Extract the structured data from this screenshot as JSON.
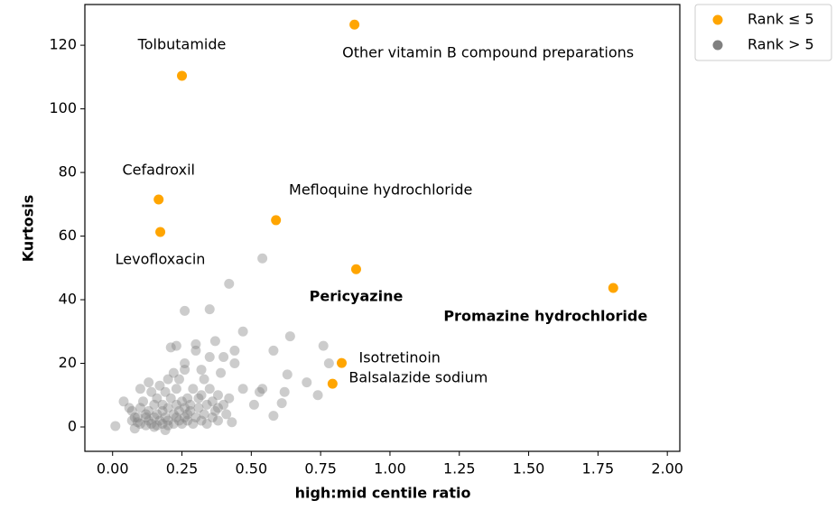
{
  "chart_data": {
    "type": "scatter",
    "xlabel": "high:mid centile ratio",
    "ylabel": "Kurtosis",
    "xlim": [
      -0.1,
      2.045
    ],
    "ylim": [
      -7.66,
      132.8
    ],
    "xticks": [
      {
        "value": 0,
        "label": "0.00"
      },
      {
        "value": 0.25,
        "label": "0.25"
      },
      {
        "value": 0.5,
        "label": "0.50"
      },
      {
        "value": 0.75,
        "label": "0.75"
      },
      {
        "value": 1,
        "label": "1.00"
      },
      {
        "value": 1.25,
        "label": "1.25"
      },
      {
        "value": 1.5,
        "label": "1.50"
      },
      {
        "value": 1.75,
        "label": "1.75"
      },
      {
        "value": 2,
        "label": "2.00"
      }
    ],
    "yticks": [
      0,
      20,
      40,
      60,
      80,
      100,
      120
    ],
    "legend": "outside-upper-right",
    "series": [
      {
        "name": "Rank ≤ 5",
        "color": "#ffa500",
        "opacity": 1,
        "x": [
          0.872,
          0.25,
          0.166,
          0.172,
          0.589,
          0.878,
          1.805,
          0.826,
          0.793
        ],
        "values": [
          126.5,
          110.4,
          71.5,
          61.3,
          65,
          49.6,
          43.7,
          20.1,
          13.6
        ],
        "labels": [
          "Other vitamin B compound preparations",
          "Tolbutamide",
          "Cefadroxil",
          "Levofloxacin",
          "Mefloquine hydrochloride",
          "Pericyazine",
          "Promazine hydrochloride",
          "Isotretinoin",
          "Balsalazide sodium"
        ],
        "bold": [
          false,
          false,
          false,
          false,
          false,
          true,
          true,
          false,
          false
        ]
      },
      {
        "name": "Rank > 5",
        "color": "#808080",
        "opacity": 0.4,
        "x": [
          0.01,
          0.04,
          0.07,
          0.07,
          0.08,
          0.09,
          0.1,
          0.1,
          0.1,
          0.11,
          0.12,
          0.12,
          0.13,
          0.13,
          0.13,
          0.14,
          0.14,
          0.15,
          0.15,
          0.16,
          0.16,
          0.16,
          0.17,
          0.17,
          0.18,
          0.18,
          0.18,
          0.19,
          0.19,
          0.2,
          0.2,
          0.2,
          0.2,
          0.21,
          0.21,
          0.22,
          0.22,
          0.22,
          0.23,
          0.23,
          0.23,
          0.23,
          0.24,
          0.24,
          0.24,
          0.25,
          0.25,
          0.26,
          0.26,
          0.26,
          0.26,
          0.26,
          0.27,
          0.27,
          0.27,
          0.28,
          0.28,
          0.29,
          0.29,
          0.3,
          0.3,
          0.3,
          0.31,
          0.31,
          0.32,
          0.32,
          0.32,
          0.33,
          0.33,
          0.34,
          0.34,
          0.35,
          0.35,
          0.35,
          0.36,
          0.36,
          0.37,
          0.37,
          0.38,
          0.38,
          0.38,
          0.39,
          0.4,
          0.4,
          0.41,
          0.42,
          0.42,
          0.43,
          0.44,
          0.44,
          0.47,
          0.47,
          0.51,
          0.53,
          0.54,
          0.54,
          0.58,
          0.58,
          0.61,
          0.62,
          0.63,
          0.64,
          0.7,
          0.74,
          0.76,
          0.78,
          0.12,
          0.08,
          0.06,
          0.15,
          0.19,
          0.09
        ],
        "values": [
          0.3,
          8,
          5,
          2,
          -0.5,
          3,
          6,
          1,
          12,
          8,
          0.5,
          3,
          2,
          5,
          14,
          1,
          11,
          3,
          7,
          0.5,
          4,
          9,
          2,
          13,
          1,
          5,
          7,
          3,
          11,
          0.5,
          2,
          6,
          15,
          25,
          9,
          1,
          4,
          17,
          3,
          7,
          12,
          25.5,
          2,
          5,
          15,
          1,
          8,
          3,
          6,
          18,
          20,
          36.5,
          2,
          4,
          9,
          5,
          7,
          1,
          12,
          3,
          24,
          26,
          6,
          9,
          2,
          10,
          18,
          4,
          15,
          7,
          1,
          12,
          22,
          37,
          3,
          8,
          5,
          27,
          2,
          10,
          6,
          17,
          7,
          22,
          4,
          9,
          45,
          1.5,
          20,
          24,
          12,
          30,
          7,
          11,
          12,
          53,
          24,
          3.5,
          7.5,
          11,
          16.5,
          28.5,
          14,
          10,
          25.5,
          20,
          4,
          3,
          6,
          0,
          -1,
          1.5
        ]
      }
    ]
  }
}
